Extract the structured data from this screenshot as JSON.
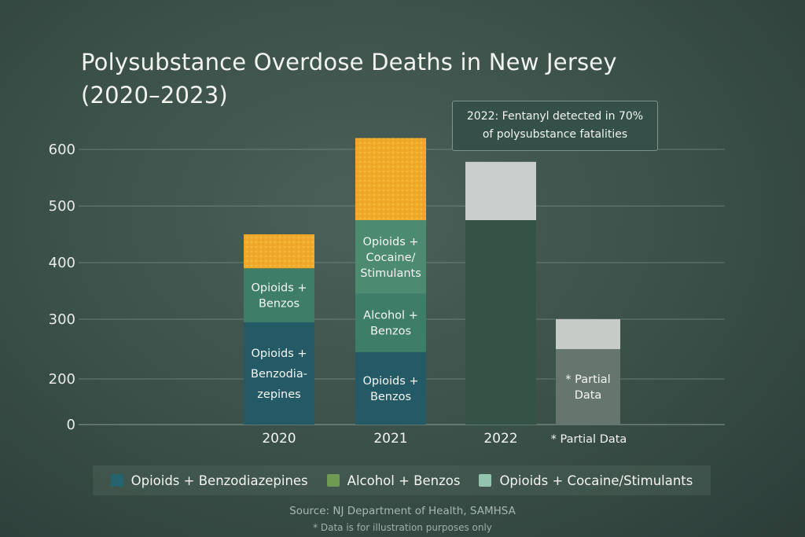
{
  "title_line1": "Polysubstance Overdose Deaths in New Jersey",
  "title_line2": "(2020–2023)",
  "callout": {
    "line1": "2022: Fentanyl detected in 70%",
    "line2": "of polysubstance fatalities"
  },
  "partial_footnote": "* Partial Data",
  "source": "Source: NJ Department of Health, SAMHSA",
  "note": "* Data is for illustration purposes only",
  "legend": [
    {
      "label": "Opioids + Benzodiazepines",
      "color": "#24646f"
    },
    {
      "label": "Alcohol + Benzos",
      "color": "#6f9a52"
    },
    {
      "label": "Opioids + Cocaine/Stimulants",
      "color": "#93c4ad"
    }
  ],
  "chart_data": {
    "type": "bar",
    "stacked": true,
    "title": "Polysubstance Overdose Deaths in New Jersey (2020–2023)",
    "xlabel": "",
    "ylabel": "",
    "yticks": [
      0,
      200,
      300,
      400,
      500,
      600
    ],
    "categories": [
      "2020",
      "2021",
      "2022",
      "* Partial Data"
    ],
    "bars": [
      {
        "category": "2020",
        "segments": [
          {
            "label_lines": [
              "Opioids +",
              "Benzodia-",
              "zepines"
            ],
            "from": 0,
            "to": 295,
            "color": "#245a66"
          },
          {
            "label_lines": [
              "Opioids +",
              "Benzos"
            ],
            "from": 295,
            "to": 390,
            "color": "#3e7d68"
          },
          {
            "label_lines": [],
            "from": 390,
            "to": 450,
            "color": "#f0a92a"
          }
        ]
      },
      {
        "category": "2021",
        "segments": [
          {
            "label_lines": [
              "Opioids +",
              "Benzos"
            ],
            "from": 0,
            "to": 245,
            "color": "#245a66"
          },
          {
            "label_lines": [
              "Alcohol +",
              "Benzos"
            ],
            "from": 245,
            "to": 345,
            "color": "#3e7d68"
          },
          {
            "label_lines": [
              "Opioids +",
              "Cocaine/",
              "Stimulants"
            ],
            "from": 345,
            "to": 475,
            "color": "#4d8a72"
          },
          {
            "label_lines": [],
            "from": 475,
            "to": 620,
            "color": "#f0aa28"
          }
        ]
      },
      {
        "category": "2022",
        "segments": [
          {
            "label_lines": [],
            "from": 0,
            "to": 475,
            "color": "#355247"
          },
          {
            "label_lines": [],
            "from": 475,
            "to": 578,
            "color": "#c9cdcb"
          }
        ]
      },
      {
        "category": "* Partial Data",
        "segments": [
          {
            "label_lines": [
              "* Partial",
              "Data"
            ],
            "from": 0,
            "to": 250,
            "color": "#65766f"
          },
          {
            "label_lines": [],
            "from": 250,
            "to": 300,
            "color": "#c6cbc8"
          }
        ]
      }
    ]
  }
}
